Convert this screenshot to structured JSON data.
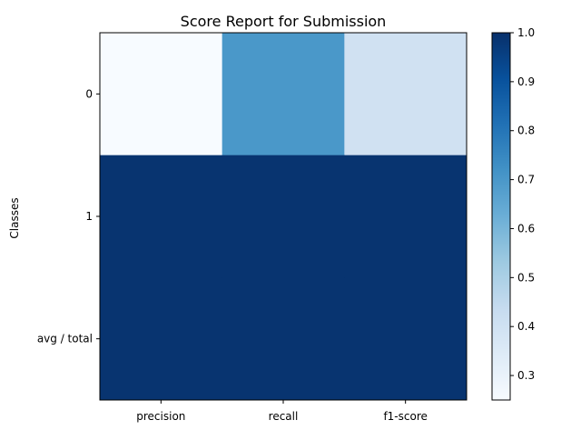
{
  "chart_data": {
    "type": "heatmap",
    "title": "Score Report for Submission",
    "xlabel": "",
    "ylabel": "Classes",
    "x_categories": [
      "precision",
      "recall",
      "f1-score"
    ],
    "y_categories": [
      "0",
      "1",
      "avg / total"
    ],
    "values": [
      [
        0.25,
        0.7,
        0.4
      ],
      [
        0.99,
        0.99,
        0.99
      ],
      [
        0.99,
        0.99,
        0.99
      ]
    ],
    "colormap": "Blues",
    "color_range": [
      0.25,
      1.0
    ],
    "colorbar_ticks": [
      "0.3",
      "0.4",
      "0.5",
      "0.6",
      "0.7",
      "0.8",
      "0.9",
      "1.0"
    ],
    "grid": false
  }
}
